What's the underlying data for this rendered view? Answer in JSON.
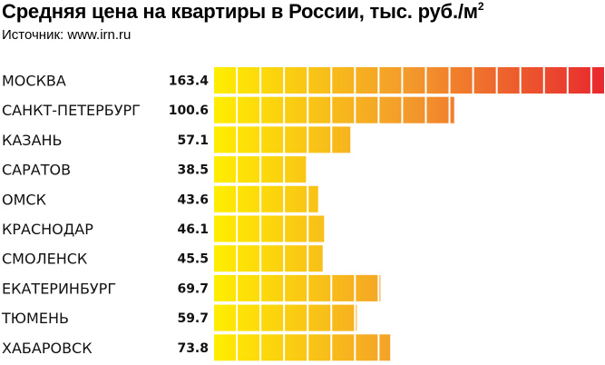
{
  "chart_data": {
    "type": "bar",
    "orientation": "horizontal",
    "title": "Средняя цена на квартиры в России, тыс. руб./м",
    "title_superscript": "2",
    "subtitle": "Источник: www.irn.ru",
    "categories": [
      "МОСКВА",
      "САНКТ-ПЕТЕРБУРГ",
      "КАЗАНЬ",
      "САРАТОВ",
      "ОМСК",
      "КРАСНОДАР",
      "СМОЛЕНСК",
      "ЕКАТЕРИНБУРГ",
      "ТЮМЕНЬ",
      "ХАБАРОВСК"
    ],
    "values": [
      163.4,
      100.6,
      57.1,
      38.5,
      43.6,
      46.1,
      45.5,
      69.7,
      59.7,
      73.8
    ],
    "value_labels": [
      "163.4",
      "100.6",
      "57.1",
      "38.5",
      "43.6",
      "46.1",
      "45.5",
      "69.7",
      "59.7",
      "73.8"
    ],
    "xlim": [
      0,
      163.4
    ],
    "segment_size": 9.9,
    "gradient_colors": [
      "#ffee00",
      "#f39a2c",
      "#e8282e"
    ],
    "grid": false,
    "legend": "none"
  }
}
